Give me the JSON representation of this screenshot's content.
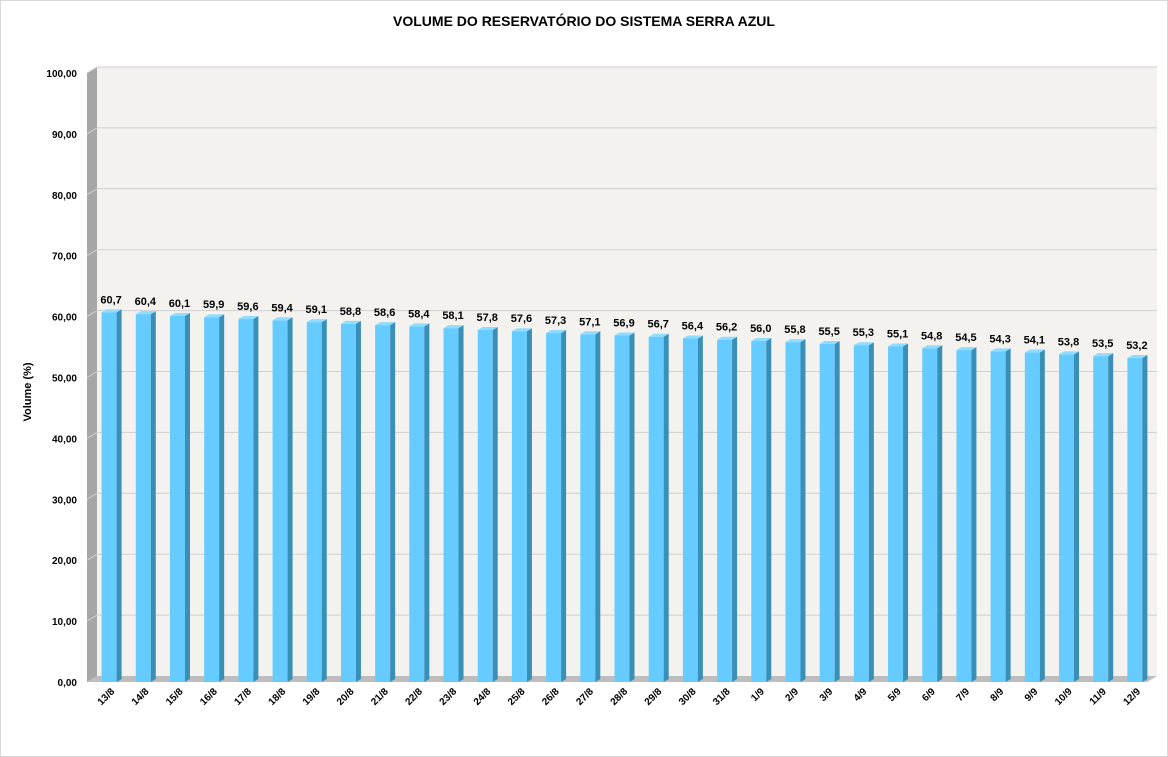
{
  "chart_data": {
    "type": "bar",
    "title": "VOLUME DO RESERVATÓRIO DO SISTEMA SERRA AZUL",
    "xlabel": "",
    "ylabel": "Volume (%)",
    "ylim": [
      0,
      100
    ],
    "y_ticks": [
      "0,00",
      "10,00",
      "20,00",
      "30,00",
      "40,00",
      "50,00",
      "60,00",
      "70,00",
      "80,00",
      "90,00",
      "100,00"
    ],
    "categories": [
      "13/8",
      "14/8",
      "15/8",
      "16/8",
      "17/8",
      "18/8",
      "19/8",
      "20/8",
      "21/8",
      "22/8",
      "23/8",
      "24/8",
      "25/8",
      "26/8",
      "27/8",
      "28/8",
      "29/8",
      "30/8",
      "31/8",
      "1/9",
      "2/9",
      "3/9",
      "4/9",
      "5/9",
      "6/9",
      "7/9",
      "8/9",
      "9/9",
      "10/9",
      "11/9",
      "12/9"
    ],
    "values": [
      60.7,
      60.4,
      60.1,
      59.9,
      59.6,
      59.4,
      59.1,
      58.8,
      58.6,
      58.4,
      58.1,
      57.8,
      57.6,
      57.3,
      57.1,
      56.9,
      56.7,
      56.4,
      56.2,
      56.0,
      55.8,
      55.5,
      55.3,
      55.1,
      54.8,
      54.5,
      54.3,
      54.1,
      53.8,
      53.5,
      53.2
    ],
    "data_labels": [
      "60,7",
      "60,4",
      "60,1",
      "59,9",
      "59,6",
      "59,4",
      "59,1",
      "58,8",
      "58,6",
      "58,4",
      "58,1",
      "57,8",
      "57,6",
      "57,3",
      "57,1",
      "56,9",
      "56,7",
      "56,4",
      "56,2",
      "56,0",
      "55,8",
      "55,5",
      "55,3",
      "55,1",
      "54,8",
      "54,5",
      "54,3",
      "54,1",
      "53,8",
      "53,5",
      "53,2"
    ],
    "grid": true,
    "legend": "none",
    "colors": {
      "bar_front": "#66ccff",
      "bar_side": "#3a8fb7",
      "bar_top": "#8fdcff",
      "plot_bg": "#f3f2ee",
      "floor": "#bdbdbd",
      "wall_side": "#a6a6a6",
      "grid": "#d0d0d0"
    }
  }
}
